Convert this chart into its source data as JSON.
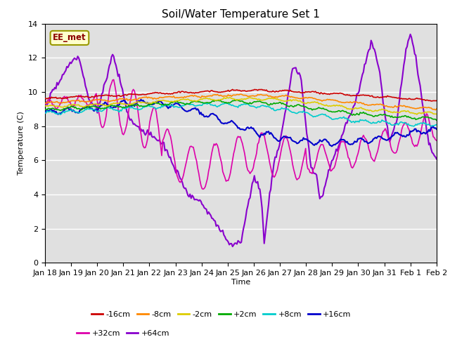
{
  "title": "Soil/Water Temperature Set 1",
  "ylabel": "Temperature (C)",
  "xlabel": "Time",
  "annotation": "EE_met",
  "ylim": [
    0,
    14
  ],
  "background_color": "#ffffff",
  "plot_bg_color": "#e0e0e0",
  "x_ticks": [
    "Jan 18",
    "Jan 19",
    "Jan 20",
    "Jan 21",
    "Jan 22",
    "Jan 23",
    "Jan 24",
    "Jan 25",
    "Jan 26",
    "Jan 27",
    "Jan 28",
    "Jan 29",
    "Jan 30",
    "Jan 31",
    "Feb 1",
    "Feb 2"
  ],
  "legend_entries": [
    [
      "-16cm",
      "#cc0000"
    ],
    [
      "-8cm",
      "#ff8800"
    ],
    [
      "-2cm",
      "#ddcc00"
    ],
    [
      "+2cm",
      "#00aa00"
    ],
    [
      "+8cm",
      "#00cccc"
    ],
    [
      "+16cm",
      "#0000cc"
    ],
    [
      "+32cm",
      "#dd00aa"
    ],
    [
      "+64cm",
      "#8800cc"
    ]
  ]
}
